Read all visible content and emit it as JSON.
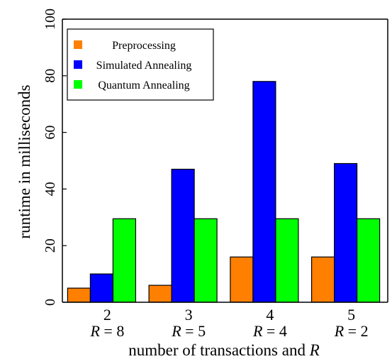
{
  "chart_data": {
    "type": "bar",
    "title": "",
    "xlabel": "number of transactions and R",
    "xlabel_main": "number of transactions and ",
    "xlabel_var": "R",
    "ylabel": "runtime in milliseconds",
    "ylim": [
      0,
      100
    ],
    "yticks": [
      "0",
      "20",
      "40",
      "60",
      "80",
      "100"
    ],
    "ytick_values": [
      0,
      20,
      40,
      60,
      80,
      100
    ],
    "grid": false,
    "legend_placement": "top-left",
    "categories": [
      {
        "transactions": "2",
        "r_var": "R",
        "r_eq": "=",
        "r_value": "8"
      },
      {
        "transactions": "3",
        "r_var": "R",
        "r_eq": "=",
        "r_value": "5"
      },
      {
        "transactions": "4",
        "r_var": "R",
        "r_eq": "=",
        "r_value": "4"
      },
      {
        "transactions": "5",
        "r_var": "R",
        "r_eq": "=",
        "r_value": "2"
      }
    ],
    "series": [
      {
        "name": "Preprocessing",
        "color": "#ff7f00",
        "values": [
          5,
          6,
          16,
          16
        ]
      },
      {
        "name": "Simulated Annealing",
        "color": "#0000ff",
        "values": [
          10,
          47,
          78,
          49
        ]
      },
      {
        "name": "Quantum Annealing",
        "color": "#00ff00",
        "values": [
          29.5,
          29.5,
          29.5,
          29.5
        ]
      }
    ]
  }
}
